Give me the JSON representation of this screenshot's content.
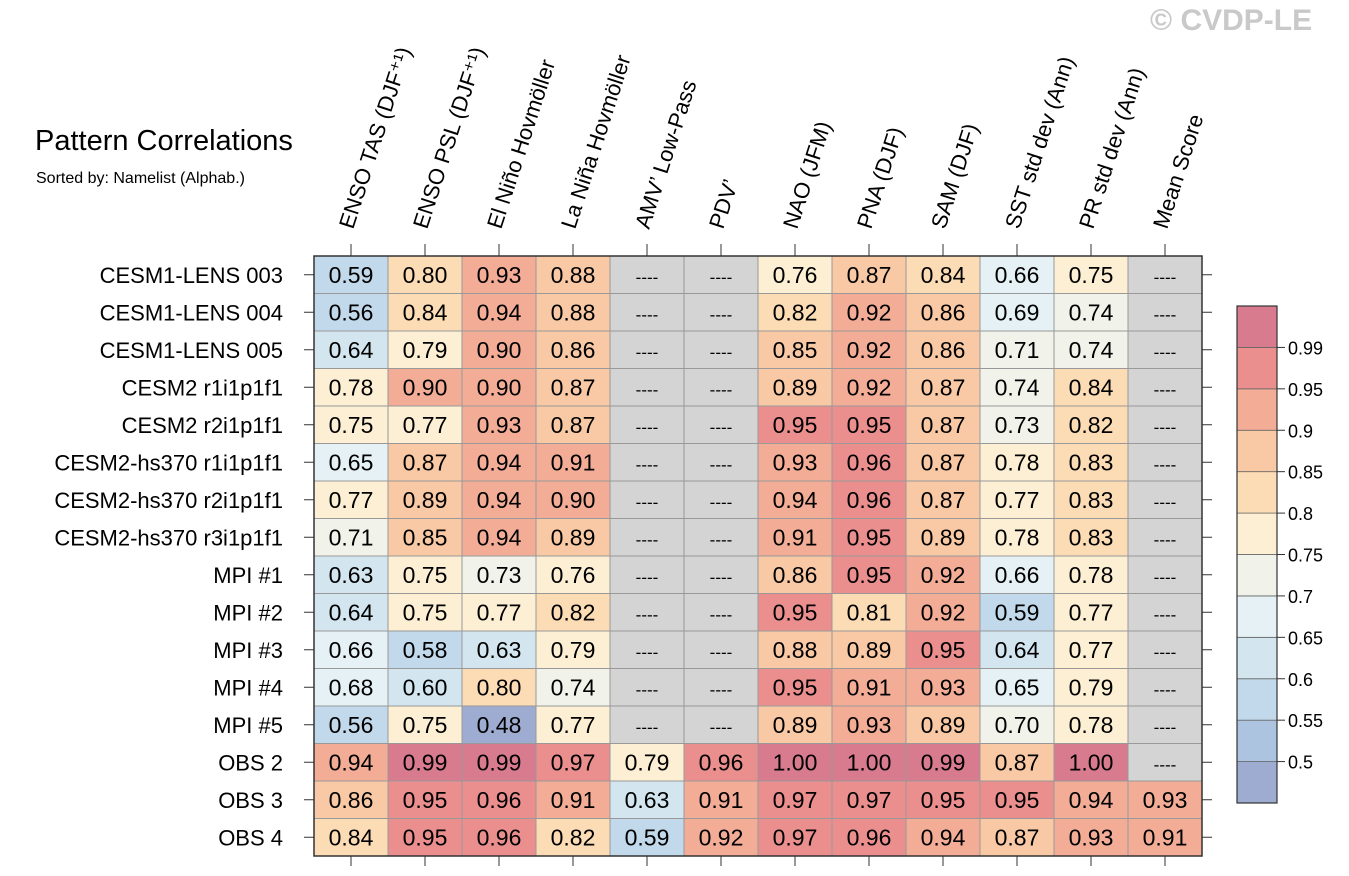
{
  "watermark": "© CVDP-LE",
  "title": "Pattern Correlations",
  "subtitle": "Sorted by: Namelist (Alphab.)",
  "chart_data": {
    "type": "heatmap",
    "missing_label": "----",
    "columns": [
      "ENSO TAS (DJF⁺¹)",
      "ENSO PSL (DJF⁺¹)",
      "El Niño Hovmöller",
      "La Niña Hovmöller",
      "AMV’ Low-Pass",
      "PDV’",
      "NAO (JFM)",
      "PNA (DJF)",
      "SAM (DJF)",
      "SST std dev (Ann)",
      "PR std dev (Ann)",
      "Mean Score"
    ],
    "rows": [
      "CESM1-LENS 003",
      "CESM1-LENS 004",
      "CESM1-LENS 005",
      "CESM2 r1i1p1f1",
      "CESM2 r2i1p1f1",
      "CESM2-hs370 r1i1p1f1",
      "CESM2-hs370 r2i1p1f1",
      "CESM2-hs370 r3i1p1f1",
      "MPI #1",
      "MPI #2",
      "MPI #3",
      "MPI #4",
      "MPI #5",
      "OBS 2",
      "OBS 3",
      "OBS 4"
    ],
    "values": [
      [
        "0.59",
        "0.80",
        "0.93",
        "0.88",
        null,
        null,
        "0.76",
        "0.87",
        "0.84",
        "0.66",
        "0.75",
        null
      ],
      [
        "0.56",
        "0.84",
        "0.94",
        "0.88",
        null,
        null,
        "0.82",
        "0.92",
        "0.86",
        "0.69",
        "0.74",
        null
      ],
      [
        "0.64",
        "0.79",
        "0.90",
        "0.86",
        null,
        null,
        "0.85",
        "0.92",
        "0.86",
        "0.71",
        "0.74",
        null
      ],
      [
        "0.78",
        "0.90",
        "0.90",
        "0.87",
        null,
        null,
        "0.89",
        "0.92",
        "0.87",
        "0.74",
        "0.84",
        null
      ],
      [
        "0.75",
        "0.77",
        "0.93",
        "0.87",
        null,
        null,
        "0.95",
        "0.95",
        "0.87",
        "0.73",
        "0.82",
        null
      ],
      [
        "0.65",
        "0.87",
        "0.94",
        "0.91",
        null,
        null,
        "0.93",
        "0.96",
        "0.87",
        "0.78",
        "0.83",
        null
      ],
      [
        "0.77",
        "0.89",
        "0.94",
        "0.90",
        null,
        null,
        "0.94",
        "0.96",
        "0.87",
        "0.77",
        "0.83",
        null
      ],
      [
        "0.71",
        "0.85",
        "0.94",
        "0.89",
        null,
        null,
        "0.91",
        "0.95",
        "0.89",
        "0.78",
        "0.83",
        null
      ],
      [
        "0.63",
        "0.75",
        "0.73",
        "0.76",
        null,
        null,
        "0.86",
        "0.95",
        "0.92",
        "0.66",
        "0.78",
        null
      ],
      [
        "0.64",
        "0.75",
        "0.77",
        "0.82",
        null,
        null,
        "0.95",
        "0.81",
        "0.92",
        "0.59",
        "0.77",
        null
      ],
      [
        "0.66",
        "0.58",
        "0.63",
        "0.79",
        null,
        null,
        "0.88",
        "0.89",
        "0.95",
        "0.64",
        "0.77",
        null
      ],
      [
        "0.68",
        "0.60",
        "0.80",
        "0.74",
        null,
        null,
        "0.95",
        "0.91",
        "0.93",
        "0.65",
        "0.79",
        null
      ],
      [
        "0.56",
        "0.75",
        "0.48",
        "0.77",
        null,
        null,
        "0.89",
        "0.93",
        "0.89",
        "0.70",
        "0.78",
        null
      ],
      [
        "0.94",
        "0.99",
        "0.99",
        "0.97",
        "0.79",
        "0.96",
        "1.00",
        "1.00",
        "0.99",
        "0.87",
        "1.00",
        null
      ],
      [
        "0.86",
        "0.95",
        "0.96",
        "0.91",
        "0.63",
        "0.91",
        "0.97",
        "0.97",
        "0.95",
        "0.95",
        "0.94",
        "0.93"
      ],
      [
        "0.84",
        "0.95",
        "0.96",
        "0.82",
        "0.59",
        "0.92",
        "0.97",
        "0.96",
        "0.94",
        "0.87",
        "0.93",
        "0.91"
      ]
    ],
    "colorbar": {
      "levels": [
        0.5,
        0.55,
        0.6,
        0.65,
        0.7,
        0.75,
        0.8,
        0.85,
        0.9,
        0.95,
        0.99
      ],
      "labels": [
        "0.5",
        "0.55",
        "0.6",
        "0.65",
        "0.7",
        "0.75",
        "0.8",
        "0.85",
        "0.9",
        "0.95",
        "0.99"
      ],
      "colors": [
        "#9eacd2",
        "#adc4e1",
        "#c1d9ea",
        "#d3e6ef",
        "#e6f1f5",
        "#f1f2ea",
        "#fcefd3",
        "#fbdcb5",
        "#f8c9a4",
        "#f3ad97",
        "#ea8e8e",
        "#d97b8f"
      ],
      "missing_color": "#d4d4d4"
    }
  }
}
